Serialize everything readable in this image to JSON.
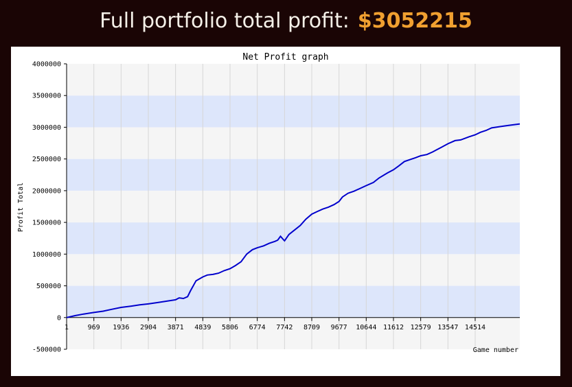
{
  "header": {
    "label": "Full portfolio total profit:",
    "amount": "$3052215"
  },
  "colors": {
    "page_background": "#1a0505",
    "amount": "#f0a030",
    "line": "#0000cc",
    "band_light": "#f5f5f5",
    "band_blue": "#dde6fb"
  },
  "chart_data": {
    "type": "line",
    "title": "Net Profit graph",
    "xlabel": "Game number",
    "ylabel": "Profit Total",
    "xlim": [
      1,
      16100
    ],
    "ylim": [
      -500000,
      4000000
    ],
    "grid": true,
    "legend": "none",
    "x_ticks": [
      1,
      969,
      1936,
      2904,
      3871,
      4839,
      5806,
      6774,
      7742,
      8709,
      9677,
      10644,
      11612,
      12579,
      13547,
      14514
    ],
    "y_ticks": [
      -500000,
      0,
      500000,
      1000000,
      1500000,
      2000000,
      2500000,
      3000000,
      3500000,
      4000000
    ],
    "series": [
      {
        "x": [
          1,
          300,
          600,
          969,
          1300,
          1600,
          1936,
          2300,
          2600,
          2904,
          3200,
          3500,
          3871,
          4000,
          4150,
          4300,
          4400,
          4600,
          4839,
          5000,
          5200,
          5400,
          5600,
          5806,
          6000,
          6200,
          6400,
          6600,
          6774,
          7000,
          7200,
          7400,
          7500,
          7600,
          7700,
          7742,
          7900,
          8100,
          8300,
          8500,
          8709,
          8900,
          9100,
          9300,
          9500,
          9677,
          9800,
          10000,
          10200,
          10400,
          10644,
          10900,
          11100,
          11400,
          11612,
          11800,
          12000,
          12200,
          12400,
          12579,
          12800,
          13000,
          13300,
          13547,
          13800,
          14000,
          14300,
          14514,
          14700,
          14900,
          15100,
          15400,
          15700,
          16100
        ],
        "y": [
          0,
          30000,
          55000,
          80000,
          100000,
          130000,
          160000,
          180000,
          200000,
          215000,
          235000,
          255000,
          280000,
          310000,
          300000,
          330000,
          420000,
          580000,
          640000,
          670000,
          680000,
          700000,
          740000,
          770000,
          820000,
          880000,
          1000000,
          1070000,
          1100000,
          1130000,
          1170000,
          1200000,
          1220000,
          1280000,
          1230000,
          1210000,
          1310000,
          1380000,
          1450000,
          1550000,
          1630000,
          1670000,
          1710000,
          1740000,
          1780000,
          1830000,
          1900000,
          1960000,
          1990000,
          2030000,
          2080000,
          2130000,
          2200000,
          2280000,
          2330000,
          2390000,
          2460000,
          2490000,
          2520000,
          2550000,
          2570000,
          2610000,
          2680000,
          2740000,
          2790000,
          2800000,
          2850000,
          2880000,
          2920000,
          2950000,
          2990000,
          3010000,
          3030000,
          3052215
        ]
      }
    ]
  }
}
